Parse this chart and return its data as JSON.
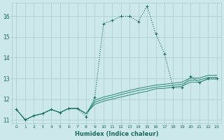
{
  "xlabel": "Humidex (Indice chaleur)",
  "ylabel": "",
  "bg_color": "#cce8e8",
  "grid_color": "#aacccc",
  "line_color_main": "#1a6b5a",
  "line_color_sec": "#2a8a70",
  "x_values": [
    0,
    1,
    2,
    3,
    4,
    5,
    6,
    7,
    8,
    9,
    10,
    11,
    12,
    13,
    14,
    15,
    16,
    17,
    18,
    19,
    20,
    21,
    22,
    23
  ],
  "series_main": [
    11.5,
    11.0,
    11.2,
    11.3,
    11.5,
    11.35,
    11.55,
    11.55,
    11.15,
    12.1,
    15.65,
    15.8,
    16.0,
    16.0,
    15.75,
    16.5,
    15.15,
    14.2,
    12.55,
    12.55,
    13.1,
    12.8,
    13.0,
    13.0
  ],
  "series_a": [
    11.5,
    11.0,
    11.2,
    11.3,
    11.5,
    11.35,
    11.55,
    11.55,
    11.3,
    11.75,
    11.9,
    12.0,
    12.1,
    12.2,
    12.3,
    12.38,
    12.5,
    12.52,
    12.58,
    12.63,
    12.82,
    12.82,
    12.97,
    12.97
  ],
  "series_b": [
    11.5,
    11.0,
    11.2,
    11.3,
    11.5,
    11.35,
    11.55,
    11.55,
    11.3,
    11.85,
    12.0,
    12.1,
    12.22,
    12.32,
    12.42,
    12.5,
    12.58,
    12.62,
    12.67,
    12.72,
    12.92,
    12.92,
    13.05,
    13.05
  ],
  "series_c": [
    11.5,
    11.0,
    11.2,
    11.3,
    11.5,
    11.35,
    11.55,
    11.55,
    11.3,
    11.95,
    12.1,
    12.2,
    12.32,
    12.42,
    12.52,
    12.6,
    12.68,
    12.72,
    12.77,
    12.82,
    13.02,
    13.02,
    13.15,
    13.15
  ],
  "ylim": [
    10.85,
    16.65
  ],
  "yticks": [
    11,
    12,
    13,
    14,
    15,
    16
  ],
  "xlim": [
    -0.5,
    23.5
  ],
  "xticks": [
    0,
    1,
    2,
    3,
    4,
    5,
    6,
    7,
    8,
    9,
    10,
    11,
    12,
    13,
    14,
    15,
    16,
    17,
    18,
    19,
    20,
    21,
    22,
    23
  ]
}
